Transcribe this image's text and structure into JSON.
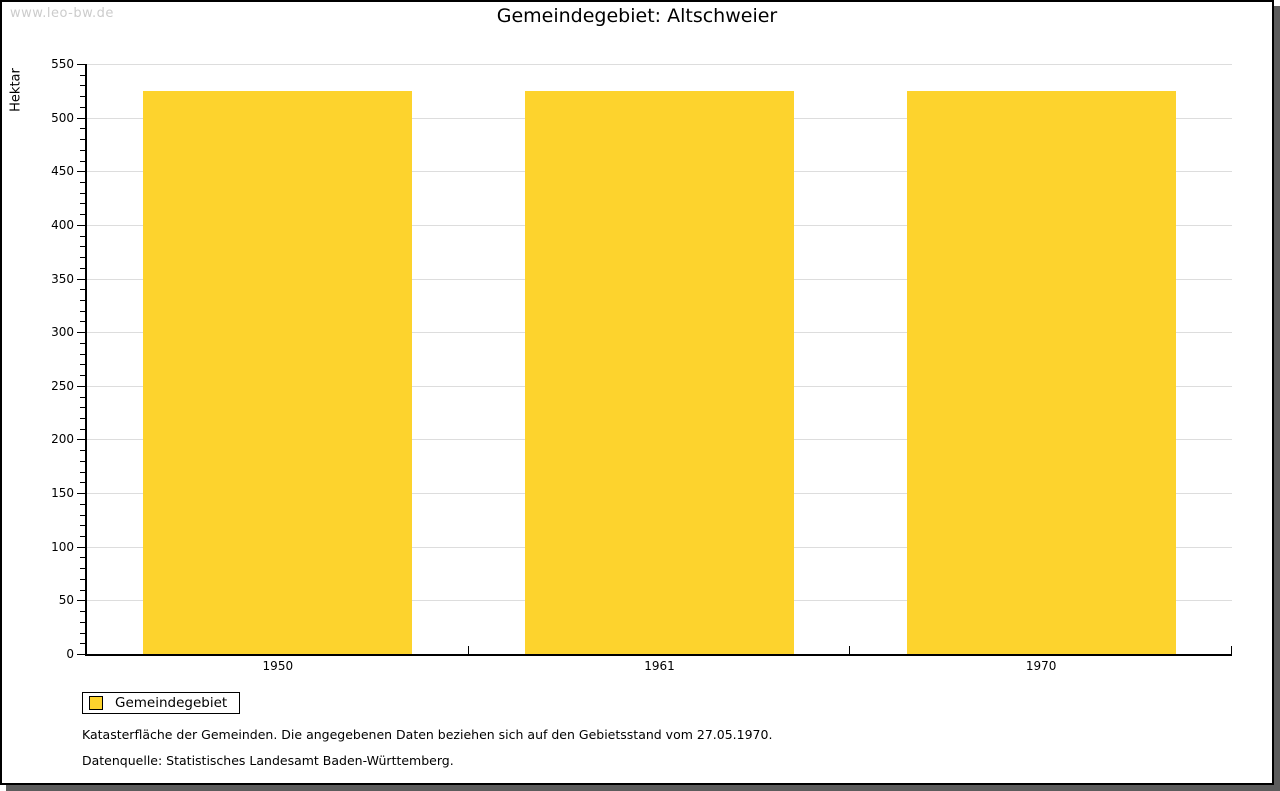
{
  "watermark": "www.leo-bw.de",
  "chart_data": {
    "type": "bar",
    "title": "Gemeindegebiet: Altschweier",
    "ylabel": "Hektar",
    "xlabel": "",
    "categories": [
      "1950",
      "1961",
      "1970"
    ],
    "series": [
      {
        "name": "Gemeindegebiet",
        "color": "#FDD32D",
        "values": [
          525,
          525,
          525
        ]
      }
    ],
    "ylim": [
      0,
      550
    ],
    "y_major_step": 50,
    "y_minor_step": 10,
    "grid": true,
    "grid_color": "#DDDDDD",
    "axis_color": "#000000",
    "legend_position": "bottom-left"
  },
  "footnotes": [
    "Katasterfläche der Gemeinden. Die angegebenen Daten beziehen sich auf den Gebietsstand vom 27.05.1970.",
    "Datenquelle: Statistisches Landesamt Baden-Württemberg."
  ]
}
